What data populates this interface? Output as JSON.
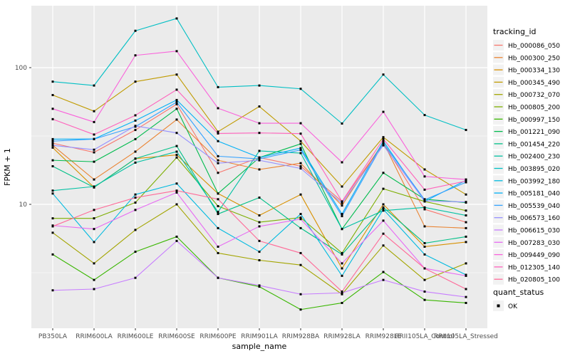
{
  "chart_data": {
    "type": "line",
    "title": "",
    "xlabel": "sample_name",
    "ylabel": "FPKM + 1",
    "y_scale": "log10",
    "y_ticks": [
      100,
      10
    ],
    "y_minor_gridlines": [
      31.623,
      3.162
    ],
    "ylim": [
      1.24,
      284
    ],
    "grid": "on",
    "panel_bg": "#EBEBEB",
    "gridline_color": "#FFFFFF",
    "tick_label_color": "#4D4D4D",
    "text_color": "#000000",
    "marker": "black-square",
    "marker_color": "#000000",
    "legend_position": "right",
    "legend_key_bg": "#F2F2F2",
    "categories": [
      "PB350LA",
      "RRIM600LA",
      "RRIM600LE",
      "RRIM600SE",
      "RRIM600PE",
      "RRIM901LA",
      "RRIM928BA",
      "RRIM928LA",
      "RRIM928LE",
      "RRII105LA_Control",
      "RRII105LA_Stressed"
    ],
    "series": [
      {
        "name": "Hb_000086_050",
        "color": "#F8766D",
        "values": [
          28,
          24,
          35,
          54,
          17,
          22,
          19,
          10.5,
          28,
          9.2,
          7.4
        ]
      },
      {
        "name": "Hb_000300_250",
        "color": "#EA8331",
        "values": [
          27,
          15.2,
          24.3,
          41.7,
          21,
          18,
          20,
          9.8,
          28.5,
          6.9,
          6.7
        ]
      },
      {
        "name": "Hb_000334_130",
        "color": "#D89000",
        "values": [
          26,
          13.3,
          21.6,
          23,
          12,
          8.3,
          11.8,
          3.4,
          10,
          4.9,
          5.3
        ]
      },
      {
        "name": "Hb_000345_490",
        "color": "#C09B00",
        "values": [
          63,
          48,
          79,
          89,
          34,
          52,
          29,
          13.5,
          31,
          18,
          11.8
        ]
      },
      {
        "name": "Hb_000732_070",
        "color": "#A3A500",
        "values": [
          6.2,
          3.7,
          6.5,
          10,
          4.4,
          3.9,
          3.6,
          2.2,
          5.0,
          2.8,
          3.7
        ]
      },
      {
        "name": "Hb_000805_200",
        "color": "#7CAE00",
        "values": [
          7.9,
          7.9,
          10.3,
          22,
          9.7,
          7.4,
          8.0,
          4.4,
          13,
          10.5,
          9.0
        ]
      },
      {
        "name": "Hb_000997_150",
        "color": "#39B600",
        "values": [
          4.3,
          2.8,
          4.5,
          5.8,
          2.9,
          2.5,
          1.7,
          1.9,
          3.2,
          2.0,
          1.9
        ]
      },
      {
        "name": "Hb_001221_090",
        "color": "#00BB4E",
        "values": [
          21,
          20.5,
          30,
          50,
          12,
          22,
          27.7,
          6.6,
          17,
          10.9,
          10.3
        ]
      },
      {
        "name": "Hb_001454_220",
        "color": "#00C087",
        "values": [
          19,
          13.3,
          21.6,
          26.7,
          8.5,
          11.2,
          6.7,
          4.3,
          9.5,
          5.2,
          5.8
        ]
      },
      {
        "name": "Hb_002400_230",
        "color": "#00C1A3",
        "values": [
          12.6,
          13.5,
          20.2,
          24.3,
          8.8,
          24.6,
          23.7,
          6.6,
          9.0,
          9.5,
          8.3
        ]
      },
      {
        "name": "Hb_003895_020",
        "color": "#00BFC4",
        "values": [
          79,
          74,
          186,
          229,
          72,
          74,
          70,
          39,
          89,
          45,
          35
        ]
      },
      {
        "name": "Hb_003992_180",
        "color": "#00BAE0",
        "values": [
          12.0,
          5.3,
          11.8,
          14.2,
          6.7,
          4.5,
          8.5,
          3.0,
          9.2,
          4.3,
          3.05
        ]
      },
      {
        "name": "Hb_005181_040",
        "color": "#00B0F6",
        "values": [
          30,
          30.1,
          41,
          58,
          29,
          22,
          25.8,
          8.5,
          29,
          10.5,
          15.0
        ]
      },
      {
        "name": "Hb_005539_040",
        "color": "#35A2FF",
        "values": [
          29,
          30,
          37,
          56,
          22.5,
          21.5,
          25,
          8.2,
          28,
          10.8,
          14.5
        ]
      },
      {
        "name": "Hb_006573_160",
        "color": "#9590FF",
        "values": [
          27,
          25.1,
          37.5,
          33.3,
          20,
          21,
          18.3,
          10.2,
          27,
          10.6,
          10.4
        ]
      },
      {
        "name": "Hb_006615_030",
        "color": "#C77CFF",
        "values": [
          2.35,
          2.4,
          2.9,
          5.4,
          2.9,
          2.55,
          2.2,
          2.25,
          2.8,
          2.3,
          2.1
        ]
      },
      {
        "name": "Hb_007283_030",
        "color": "#E76BF3",
        "values": [
          7.0,
          6.6,
          9.1,
          12.2,
          4.9,
          6.9,
          7.8,
          3.7,
          7.6,
          3.4,
          3.0
        ]
      },
      {
        "name": "Hb_009449_090",
        "color": "#FA62DB",
        "values": [
          50,
          40,
          123,
          132,
          50.5,
          39.2,
          39.2,
          20.3,
          47.5,
          16,
          15.2
        ]
      },
      {
        "name": "Hb_012305_140",
        "color": "#FF62BC",
        "values": [
          42,
          32.4,
          44.8,
          69,
          33,
          33.3,
          32.9,
          10.5,
          30,
          12.8,
          14.8
        ]
      },
      {
        "name": "Hb_020805_100",
        "color": "#FF6A98",
        "values": [
          6.9,
          9.1,
          11.2,
          12.6,
          10.9,
          5.4,
          4.4,
          2.3,
          6.1,
          3.4,
          2.4
        ]
      }
    ],
    "legend": {
      "color_title": "tracking_id",
      "shape_title": "quant_status",
      "shape_items": [
        {
          "label": "OK",
          "marker": "black-square"
        }
      ]
    }
  }
}
